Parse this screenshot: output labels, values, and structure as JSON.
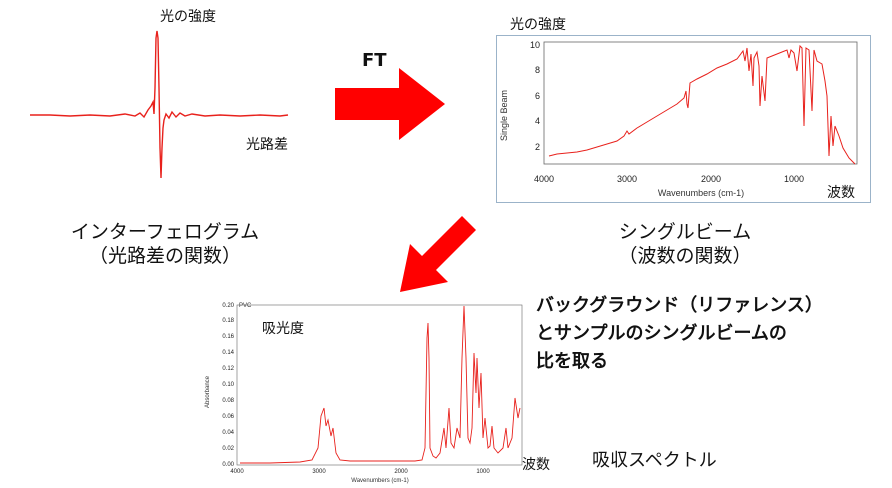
{
  "interferogram": {
    "ylabel": "光の強度",
    "xlabel": "光路差",
    "caption_line1": "インターフェログラム",
    "caption_line2": "（光路差の関数）"
  },
  "ft_label": "FT",
  "single_beam": {
    "outer_ylabel": "光の強度",
    "inner_ylabel": "Single Beam",
    "xlabel": "Wavenumbers (cm-1)",
    "outer_xlabel": "波数",
    "xticks": [
      "4000",
      "3000",
      "2000",
      "1000"
    ],
    "yticks": [
      "2",
      "4",
      "6",
      "8",
      "10"
    ],
    "caption_line1": "シングルビーム",
    "caption_line2": "（波数の関数）"
  },
  "absorbance": {
    "outer_ylabel": "吸光度",
    "inner_ylabel": "Absorbance",
    "corner_label": "PVC",
    "xlabel": "Wavenumbers (cm-1)",
    "outer_xlabel": "波数",
    "xticks": [
      "4000",
      "3000",
      "2000",
      "1000"
    ],
    "yticks": [
      "0.00",
      "0.02",
      "0.04",
      "0.06",
      "0.08",
      "0.10",
      "0.12",
      "0.14",
      "0.16",
      "0.18",
      "0.20"
    ],
    "caption": "吸収スペクトル"
  },
  "note": {
    "line1": "バックグラウンド（リファレンス）",
    "line2": "とサンプルのシングルビームの",
    "line3": "比を取る"
  },
  "colors": {
    "trace": "#e8211c",
    "arrow": "#ff0000",
    "frame": "#9bb3c9"
  }
}
